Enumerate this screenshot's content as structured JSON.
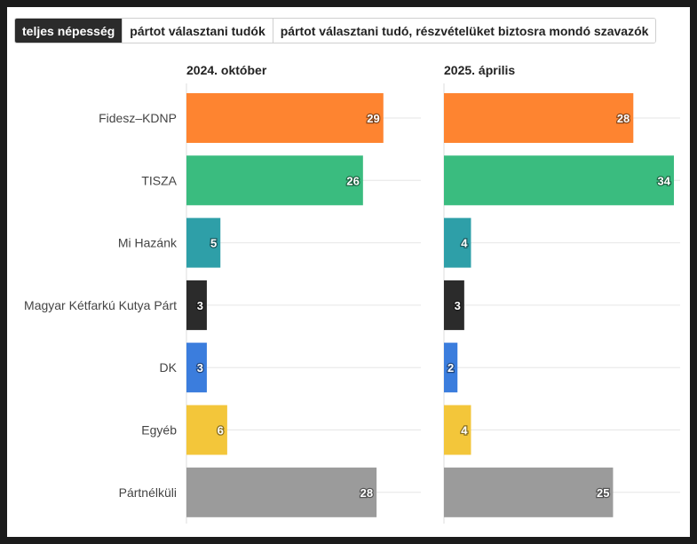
{
  "tabs": [
    {
      "label": "teljes népesség",
      "active": true
    },
    {
      "label": "pártot választani tudók",
      "active": false
    },
    {
      "label": "pártot választani tudó, részvételüket biztosra mondó szavazók",
      "active": false
    }
  ],
  "chart_data": {
    "type": "bar",
    "orientation": "horizontal",
    "categories": [
      "Fidesz–KDNP",
      "TISZA",
      "Mi Hazánk",
      "Magyar Kétfarkú Kutya Párt",
      "DK",
      "Egyéb",
      "Pártnélküli"
    ],
    "colors": [
      "#fe8430",
      "#3abc7f",
      "#2e9fa8",
      "#2b2b2b",
      "#3b7ddd",
      "#f3c63a",
      "#9b9b9b"
    ],
    "series": [
      {
        "name": "2024. október",
        "values": [
          29,
          26,
          5,
          3,
          3,
          6,
          28
        ]
      },
      {
        "name": "2025. április",
        "values": [
          28,
          34,
          4,
          3,
          2,
          4,
          25
        ]
      }
    ],
    "xlim": [
      0,
      34
    ],
    "grid": true
  }
}
